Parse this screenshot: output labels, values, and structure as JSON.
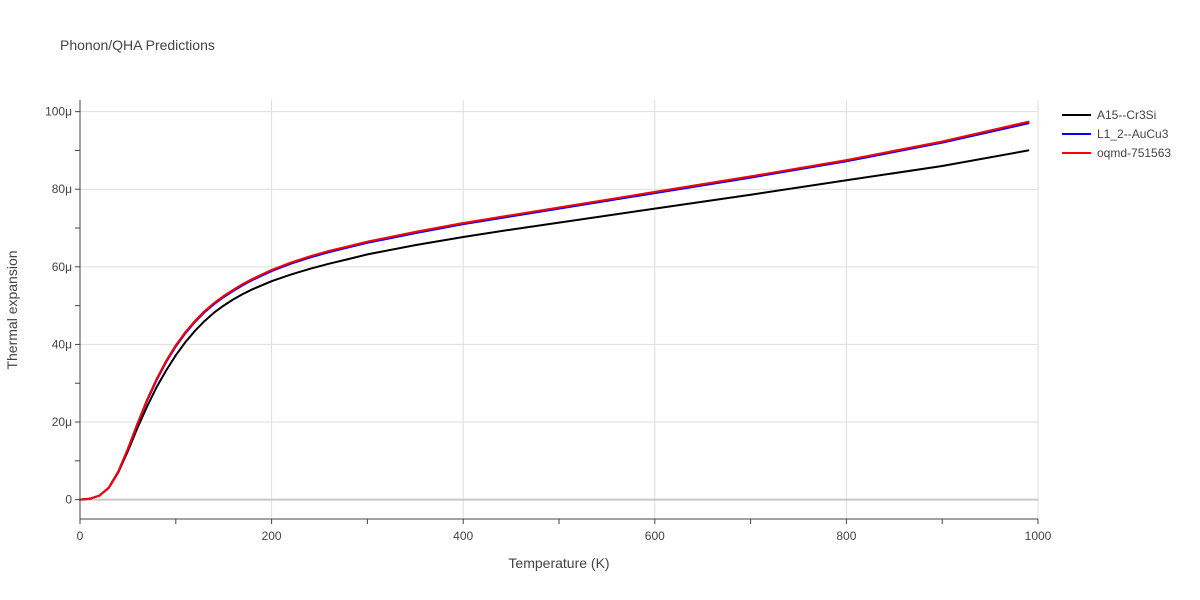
{
  "chart_data": {
    "type": "line",
    "title": "Phonon/QHA Predictions",
    "xlabel": "Temperature (K)",
    "ylabel": "Thermal expansion",
    "xlim": [
      0,
      1000
    ],
    "ylim": [
      -5,
      103
    ],
    "y_unit_suffix": "μ",
    "x_ticks": [
      0,
      200,
      400,
      600,
      800,
      1000
    ],
    "y_ticks": [
      0,
      20,
      40,
      60,
      80,
      100
    ],
    "grid": true,
    "legend_position": "top-right",
    "series": [
      {
        "name": "A15--Cr3Si",
        "color": "#000000",
        "x": [
          0,
          10,
          20,
          30,
          40,
          50,
          60,
          70,
          80,
          90,
          100,
          110,
          120,
          130,
          140,
          150,
          160,
          170,
          180,
          200,
          220,
          240,
          260,
          280,
          300,
          350,
          400,
          450,
          500,
          600,
          700,
          800,
          900,
          990
        ],
        "y": [
          0,
          0.2,
          1.0,
          3.0,
          7.0,
          12.5,
          18.5,
          24.0,
          29.0,
          33.3,
          37.2,
          40.6,
          43.5,
          46.0,
          48.2,
          50.0,
          51.6,
          53.0,
          54.2,
          56.3,
          58.0,
          59.5,
          60.8,
          62.0,
          63.2,
          65.6,
          67.7,
          69.6,
          71.4,
          75.0,
          78.6,
          82.3,
          86.0,
          90.0
        ]
      },
      {
        "name": "L1_2--AuCu3",
        "color": "#0000ff",
        "x": [
          0,
          10,
          20,
          30,
          40,
          50,
          60,
          70,
          80,
          90,
          100,
          110,
          120,
          130,
          140,
          150,
          160,
          170,
          180,
          200,
          220,
          240,
          260,
          280,
          300,
          350,
          400,
          450,
          500,
          600,
          700,
          800,
          900,
          990
        ],
        "y": [
          0,
          0.2,
          1.0,
          3.1,
          7.2,
          13.0,
          19.5,
          25.5,
          30.8,
          35.5,
          39.5,
          42.9,
          45.8,
          48.3,
          50.4,
          52.2,
          53.8,
          55.3,
          56.6,
          58.9,
          60.8,
          62.4,
          63.8,
          65.0,
          66.2,
          68.7,
          71.0,
          73.0,
          75.0,
          79.0,
          83.0,
          87.2,
          92.0,
          97.0
        ]
      },
      {
        "name": "oqmd-751563",
        "color": "#ff0000",
        "x": [
          0,
          10,
          20,
          30,
          40,
          50,
          60,
          70,
          80,
          90,
          100,
          110,
          120,
          130,
          140,
          150,
          160,
          170,
          180,
          200,
          220,
          240,
          260,
          280,
          300,
          350,
          400,
          450,
          500,
          600,
          700,
          800,
          900,
          990
        ],
        "y": [
          0,
          0.2,
          1.0,
          3.1,
          7.3,
          13.2,
          19.7,
          25.8,
          31.1,
          35.8,
          39.8,
          43.2,
          46.1,
          48.6,
          50.7,
          52.5,
          54.1,
          55.6,
          56.9,
          59.2,
          61.1,
          62.7,
          64.1,
          65.3,
          66.5,
          69.0,
          71.3,
          73.3,
          75.3,
          79.3,
          83.3,
          87.5,
          92.3,
          97.4
        ]
      }
    ]
  }
}
